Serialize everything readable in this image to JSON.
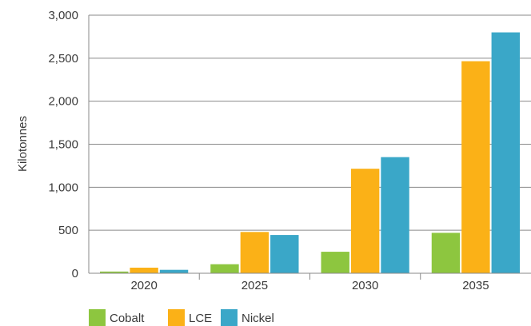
{
  "chart_data": {
    "type": "bar",
    "title": "",
    "xlabel": "",
    "ylabel": "Kilotonnes",
    "categories": [
      "2020",
      "2025",
      "2030",
      "2035"
    ],
    "series": [
      {
        "name": "Cobalt",
        "color": "#8dc63f",
        "values": [
          20,
          105,
          250,
          470
        ]
      },
      {
        "name": "LCE",
        "color": "#fbb117",
        "values": [
          65,
          480,
          1215,
          2465
        ]
      },
      {
        "name": "Nickel",
        "color": "#3aa7c8",
        "values": [
          40,
          445,
          1350,
          2800
        ]
      }
    ],
    "ylim": [
      0,
      3000
    ],
    "yticks": [
      0,
      500,
      1000,
      1500,
      2000,
      2500,
      3000
    ],
    "ytick_labels": [
      "0",
      "500",
      "1,000",
      "1,500",
      "2,000",
      "2,500",
      "3,000"
    ],
    "grid": true,
    "legend_position": "bottom-left"
  }
}
